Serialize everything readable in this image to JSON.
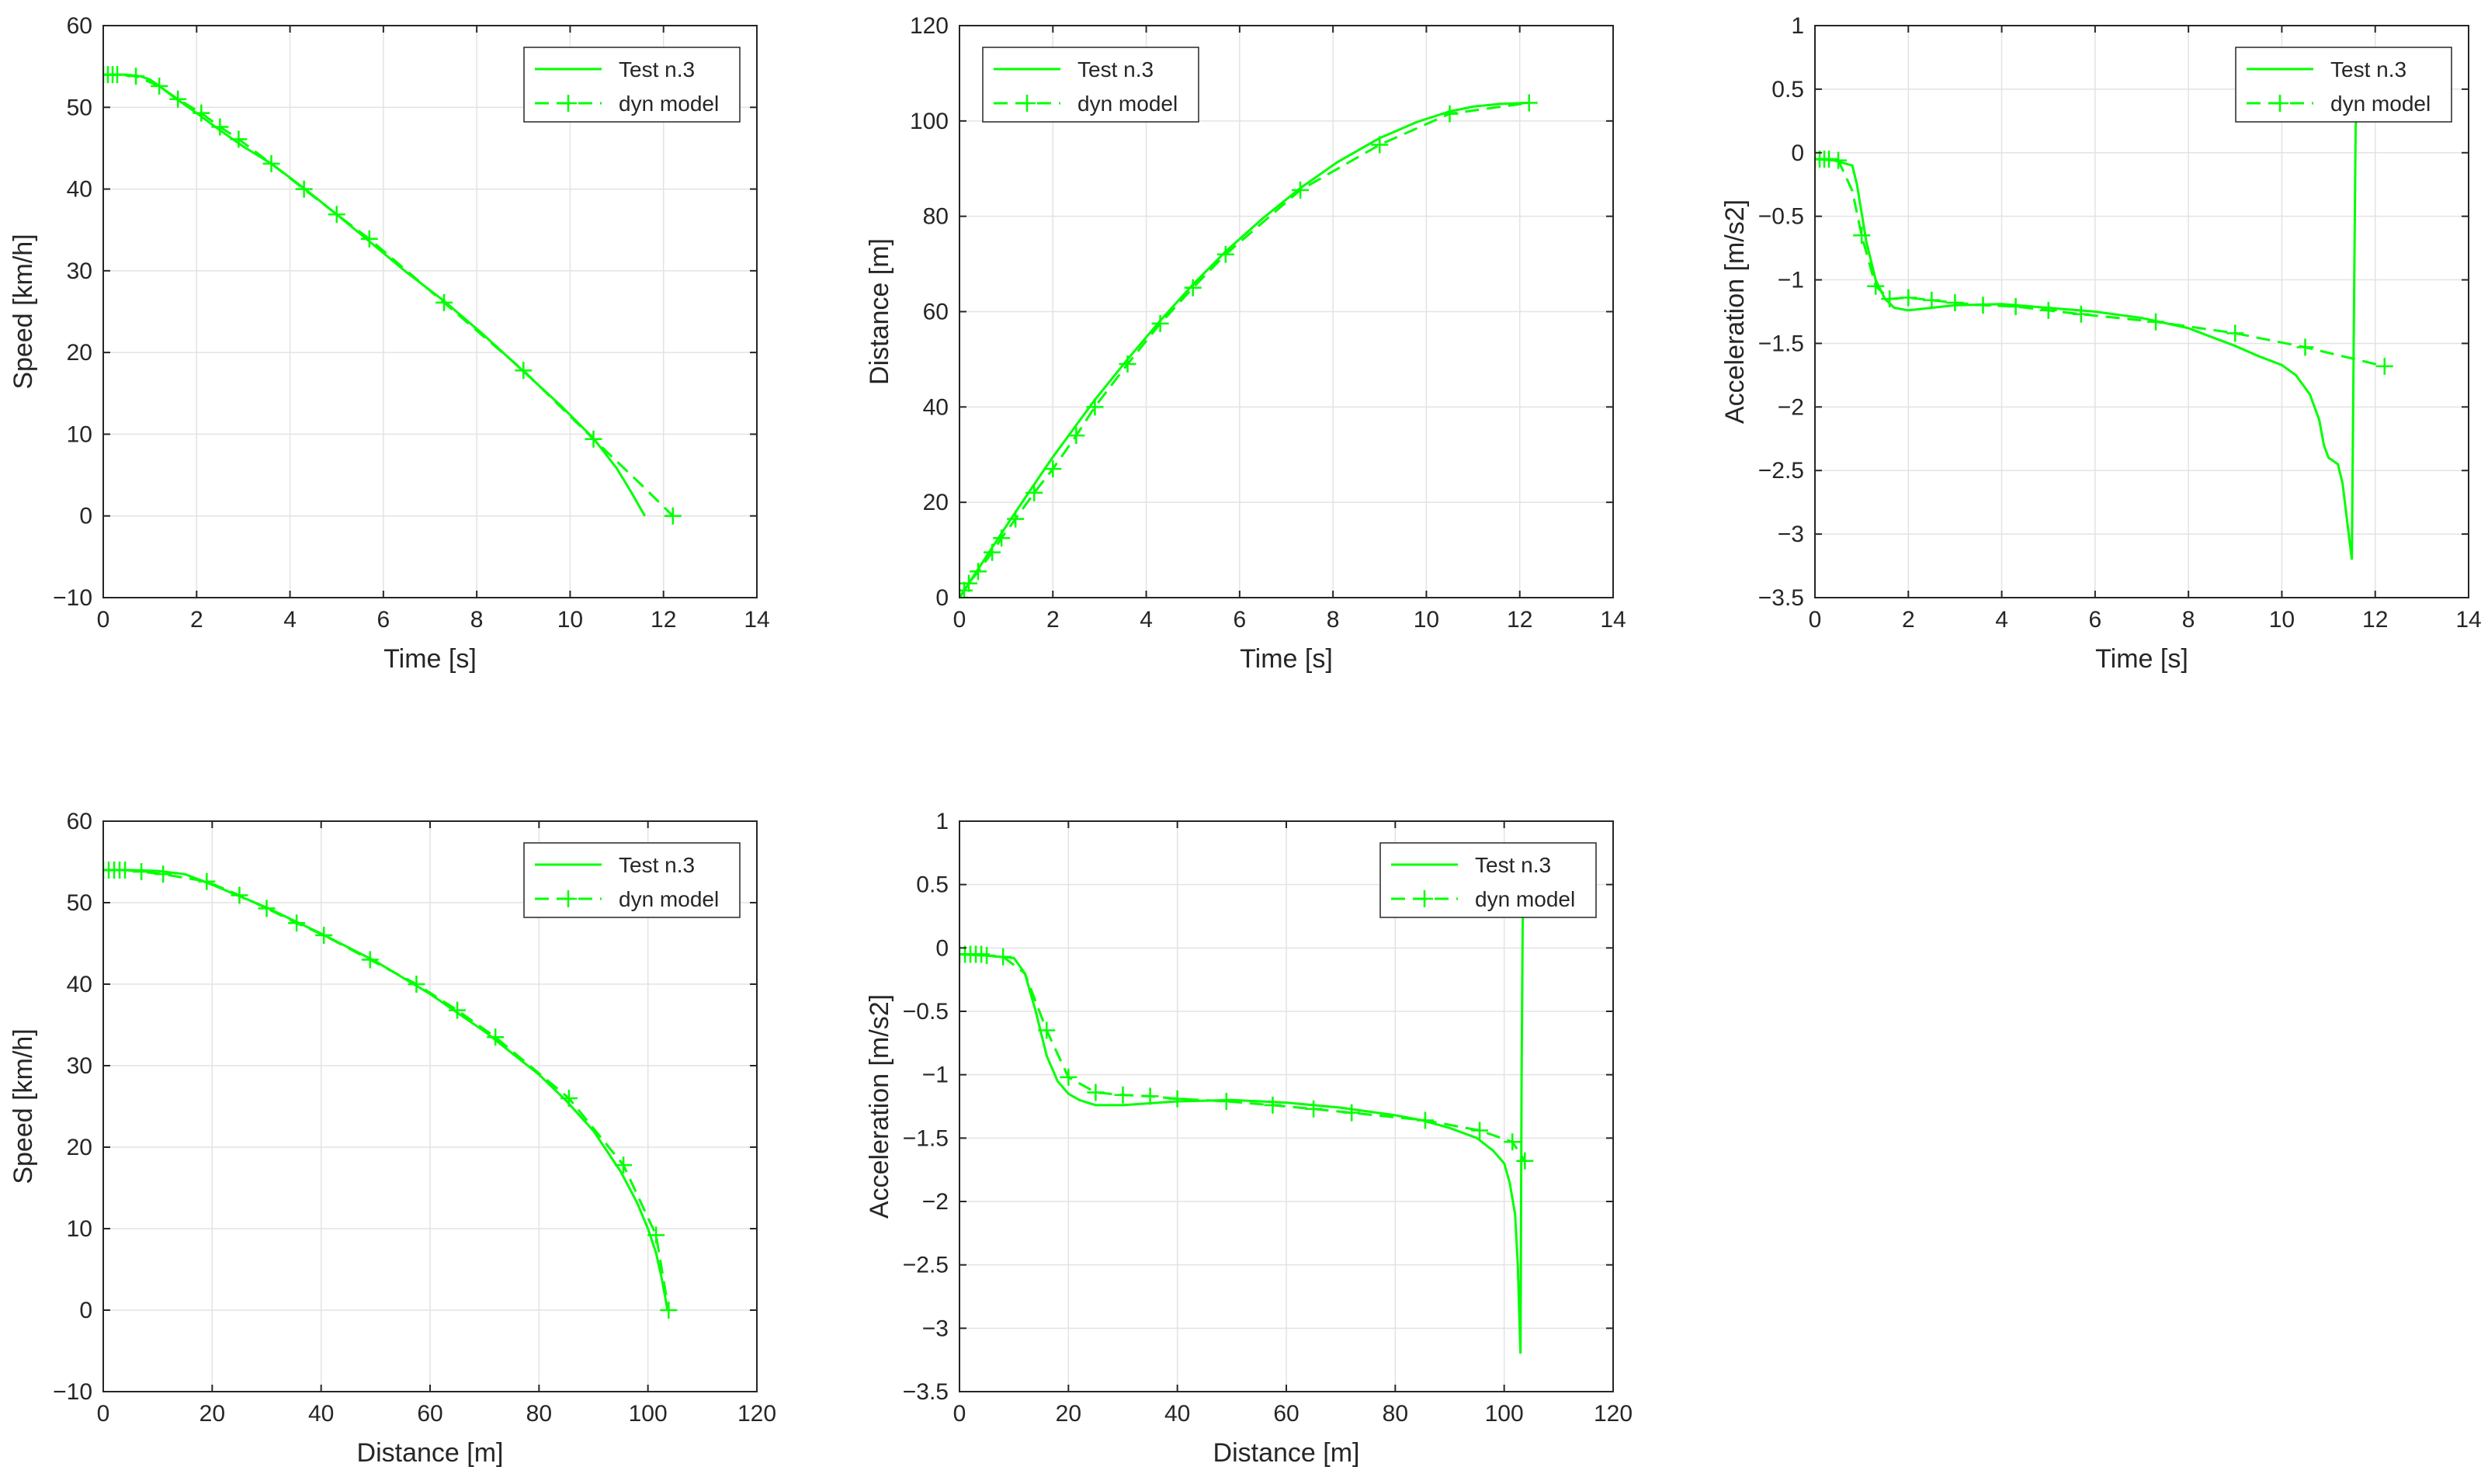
{
  "figure": {
    "description_free": true
  },
  "chart_data": [
    {
      "type": "line",
      "id": "speed-vs-time",
      "title": "",
      "xlabel": "Time [s]",
      "ylabel": "Speed [km/h]",
      "xlim": [
        0,
        14
      ],
      "ylim": [
        -10,
        60
      ],
      "xticks": [
        0,
        2,
        4,
        6,
        8,
        10,
        12,
        14
      ],
      "yticks": [
        -10,
        0,
        10,
        20,
        30,
        40,
        50,
        60
      ],
      "grid": true,
      "legend_position": "top-right",
      "series": [
        {
          "name": "Test n.3",
          "style": "solid",
          "color": "#00ff00",
          "x": [
            0,
            0.5,
            0.8,
            1.0,
            1.2,
            1.5,
            2.0,
            2.5,
            3.0,
            3.6,
            4.3,
            5.0,
            5.7,
            6.5,
            7.3,
            8.1,
            9.0,
            9.8,
            10.5,
            11.0,
            11.3,
            11.5,
            11.6
          ],
          "y": [
            54,
            54,
            53.8,
            53.4,
            52.6,
            51.3,
            49.3,
            47.2,
            45.2,
            43.1,
            40.1,
            36.9,
            33.6,
            29.8,
            26.3,
            22.4,
            17.7,
            13.5,
            9.5,
            5.8,
            3.0,
            1.0,
            0
          ]
        },
        {
          "name": "dyn model",
          "style": "dashed",
          "marker": "+",
          "color": "#00ff00",
          "x": [
            0,
            0.1,
            0.2,
            0.3,
            0.7,
            1.2,
            1.6,
            2.1,
            2.5,
            2.9,
            3.6,
            4.3,
            5.0,
            5.7,
            7.3,
            9.0,
            10.5,
            11.6,
            12.2
          ],
          "y": [
            54,
            54,
            54,
            54,
            53.8,
            52.6,
            51.0,
            49.3,
            47.6,
            46.1,
            43.1,
            40.0,
            36.9,
            33.9,
            26.1,
            17.8,
            9.4,
            3.4,
            0
          ],
          "marker_x": [
            0,
            0.1,
            0.2,
            0.3,
            0.7,
            1.2,
            1.6,
            2.1,
            2.5,
            2.9,
            3.6,
            4.3,
            5.0,
            5.7,
            7.3,
            9.0,
            10.5,
            12.2
          ]
        }
      ]
    },
    {
      "type": "line",
      "id": "distance-vs-time",
      "title": "",
      "xlabel": "Time [s]",
      "ylabel": "Distance [m]",
      "xlim": [
        0,
        14
      ],
      "ylim": [
        0,
        120
      ],
      "xticks": [
        0,
        2,
        4,
        6,
        8,
        10,
        12,
        14
      ],
      "yticks": [
        0,
        20,
        40,
        60,
        80,
        100,
        120
      ],
      "grid": true,
      "legend_position": "top-left",
      "series": [
        {
          "name": "Test n.3",
          "style": "solid",
          "color": "#00ff00",
          "x": [
            0,
            0.5,
            1.0,
            1.5,
            2.0,
            2.9,
            3.6,
            4.3,
            5.0,
            5.7,
            6.5,
            7.3,
            8.1,
            9.0,
            9.8,
            10.5,
            11.0,
            11.6,
            12.2
          ],
          "y": [
            0,
            7.5,
            15,
            22.3,
            29.5,
            41.5,
            50.0,
            58.1,
            65.7,
            72.6,
            79.6,
            85.9,
            91.4,
            96.4,
            99.8,
            102.0,
            103.0,
            103.6,
            103.8
          ]
        },
        {
          "name": "dyn model",
          "style": "dashed",
          "marker": "+",
          "color": "#00ff00",
          "x": [
            0,
            0.1,
            0.2,
            0.4,
            0.7,
            0.9,
            1.2,
            1.6,
            2.0,
            2.5,
            2.9,
            3.6,
            4.3,
            5.0,
            5.7,
            7.3,
            9.0,
            10.5,
            12.2
          ],
          "y": [
            0,
            1.5,
            3,
            5.5,
            9.5,
            12.5,
            16.5,
            22,
            27,
            34,
            40,
            49,
            57.5,
            65,
            72,
            85.5,
            95,
            101.5,
            103.8
          ],
          "marker_x": [
            0,
            0.1,
            0.2,
            0.4,
            0.7,
            0.9,
            1.2,
            1.6,
            2.0,
            2.5,
            2.9,
            3.6,
            4.3,
            5.0,
            5.7,
            7.3,
            9.0,
            10.5,
            12.2
          ]
        }
      ]
    },
    {
      "type": "line",
      "id": "acceleration-vs-time",
      "title": "",
      "xlabel": "Time [s]",
      "ylabel": "Acceleration [m/s2]",
      "xlim": [
        0,
        14
      ],
      "ylim": [
        -3.5,
        1
      ],
      "xticks": [
        0,
        2,
        4,
        6,
        8,
        10,
        12,
        14
      ],
      "yticks": [
        -3.5,
        -3,
        -2.5,
        -2,
        -1.5,
        -1,
        -0.5,
        0,
        0.5,
        1
      ],
      "grid": true,
      "legend_position": "top-right",
      "series": [
        {
          "name": "Test n.3",
          "style": "solid",
          "color": "#00ff00",
          "x": [
            0,
            0.4,
            0.8,
            0.9,
            1.1,
            1.3,
            1.5,
            1.7,
            2.0,
            3.0,
            4.0,
            5.0,
            6.0,
            7.0,
            8.0,
            8.5,
            9.0,
            9.5,
            10.0,
            10.3,
            10.6,
            10.8,
            10.9,
            11.0,
            11.2,
            11.3,
            11.4,
            11.5,
            11.55,
            11.58,
            11.6
          ],
          "y": [
            -0.05,
            -0.06,
            -0.1,
            -0.25,
            -0.7,
            -1.0,
            -1.15,
            -1.22,
            -1.24,
            -1.2,
            -1.19,
            -1.22,
            -1.25,
            -1.3,
            -1.38,
            -1.45,
            -1.52,
            -1.6,
            -1.67,
            -1.75,
            -1.9,
            -2.1,
            -2.3,
            -2.4,
            -2.45,
            -2.6,
            -2.9,
            -3.2,
            -1.0,
            0.2,
            0.3
          ]
        },
        {
          "name": "dyn model",
          "style": "dashed",
          "marker": "+",
          "color": "#00ff00",
          "x": [
            0,
            0.1,
            0.2,
            0.3,
            0.5,
            0.8,
            1.0,
            1.3,
            1.6,
            2.0,
            2.5,
            3.0,
            3.6,
            4.3,
            5.0,
            5.7,
            7.3,
            9.0,
            10.5,
            12.2
          ],
          "y": [
            -0.05,
            -0.05,
            -0.05,
            -0.05,
            -0.06,
            -0.3,
            -0.65,
            -1.05,
            -1.15,
            -1.14,
            -1.16,
            -1.18,
            -1.2,
            -1.21,
            -1.24,
            -1.27,
            -1.33,
            -1.42,
            -1.53,
            -1.68
          ],
          "marker_x": [
            0,
            0.1,
            0.2,
            0.3,
            0.5,
            1.0,
            1.3,
            1.6,
            2.0,
            2.5,
            3.0,
            3.6,
            4.3,
            5.0,
            5.7,
            7.3,
            9.0,
            10.5,
            12.2
          ]
        }
      ]
    },
    {
      "type": "line",
      "id": "speed-vs-distance",
      "title": "",
      "xlabel": "Distance [m]",
      "ylabel": "Speed [km/h]",
      "xlim": [
        0,
        120
      ],
      "ylim": [
        -10,
        60
      ],
      "xticks": [
        0,
        20,
        40,
        60,
        80,
        100,
        120
      ],
      "yticks": [
        -10,
        0,
        10,
        20,
        30,
        40,
        50,
        60
      ],
      "grid": true,
      "legend_position": "top-right",
      "series": [
        {
          "name": "Test n.3",
          "style": "solid",
          "color": "#00ff00",
          "x": [
            0,
            5,
            10,
            15,
            20,
            25,
            30,
            35,
            40,
            50,
            60,
            70,
            80,
            85,
            90,
            95,
            98,
            100,
            101.5,
            102.5,
            103.2,
            103.6
          ],
          "y": [
            54,
            54,
            53.9,
            53.5,
            52.2,
            50.8,
            49.4,
            47.8,
            46.2,
            42.8,
            38.8,
            34.2,
            28.9,
            25.7,
            22.0,
            17.0,
            13.2,
            10.0,
            7.0,
            4.0,
            1.5,
            0
          ]
        },
        {
          "name": "dyn model",
          "style": "dashed",
          "marker": "+",
          "color": "#00ff00",
          "x": [
            0,
            1,
            2,
            3,
            4,
            7,
            11,
            19,
            25,
            30,
            35.5,
            40.5,
            49,
            57.5,
            65,
            72,
            85.5,
            95.5,
            101.5,
            103.8
          ],
          "y": [
            54,
            54,
            54,
            54,
            54,
            53.8,
            53.5,
            52.6,
            50.9,
            49.3,
            47.5,
            46.0,
            43.0,
            40.0,
            36.8,
            33.5,
            26.0,
            17.8,
            9.2,
            0
          ],
          "marker_x": [
            0,
            1,
            2,
            3,
            4,
            7,
            11,
            19,
            25,
            30,
            35.5,
            40.5,
            49,
            57.5,
            65,
            72,
            85.5,
            95.5,
            101.5,
            103.8
          ]
        }
      ]
    },
    {
      "type": "line",
      "id": "acceleration-vs-distance",
      "title": "",
      "xlabel": "Distance [m]",
      "ylabel": "Acceleration [m/s2]",
      "xlim": [
        0,
        120
      ],
      "ylim": [
        -3.5,
        1
      ],
      "xticks": [
        0,
        20,
        40,
        60,
        80,
        100,
        120
      ],
      "yticks": [
        -3.5,
        -3,
        -2.5,
        -2,
        -1.5,
        -1,
        -0.5,
        0,
        0.5,
        1
      ],
      "grid": true,
      "legend_position": "top-right",
      "series": [
        {
          "name": "Test n.3",
          "style": "solid",
          "color": "#00ff00",
          "x": [
            0,
            5,
            10,
            12,
            14,
            16,
            18,
            20,
            22,
            25,
            30,
            40,
            50,
            60,
            70,
            80,
            85,
            90,
            95,
            98,
            100,
            101,
            102,
            102.5,
            103,
            103.2,
            103.4,
            103.5
          ],
          "y": [
            -0.05,
            -0.06,
            -0.08,
            -0.2,
            -0.5,
            -0.85,
            -1.05,
            -1.15,
            -1.2,
            -1.24,
            -1.24,
            -1.21,
            -1.2,
            -1.22,
            -1.26,
            -1.32,
            -1.36,
            -1.42,
            -1.5,
            -1.6,
            -1.7,
            -1.85,
            -2.1,
            -2.5,
            -3.2,
            -1.0,
            0.2,
            0.3
          ]
        },
        {
          "name": "dyn model",
          "style": "dashed",
          "marker": "+",
          "color": "#00ff00",
          "x": [
            0,
            1,
            2,
            3,
            4,
            5,
            8,
            12,
            16,
            20,
            25,
            30,
            35,
            40,
            49,
            57.5,
            65,
            72,
            85.5,
            95.5,
            101.5,
            103.8
          ],
          "y": [
            -0.05,
            -0.05,
            -0.05,
            -0.05,
            -0.05,
            -0.06,
            -0.07,
            -0.2,
            -0.65,
            -1.02,
            -1.14,
            -1.16,
            -1.17,
            -1.19,
            -1.21,
            -1.24,
            -1.27,
            -1.3,
            -1.36,
            -1.44,
            -1.53,
            -1.68
          ],
          "marker_x": [
            0,
            1,
            2,
            3,
            4,
            5,
            8,
            16,
            20,
            25,
            30,
            35,
            40,
            49,
            57.5,
            65,
            72,
            85.5,
            95.5,
            101.5,
            103.8
          ]
        }
      ]
    }
  ]
}
